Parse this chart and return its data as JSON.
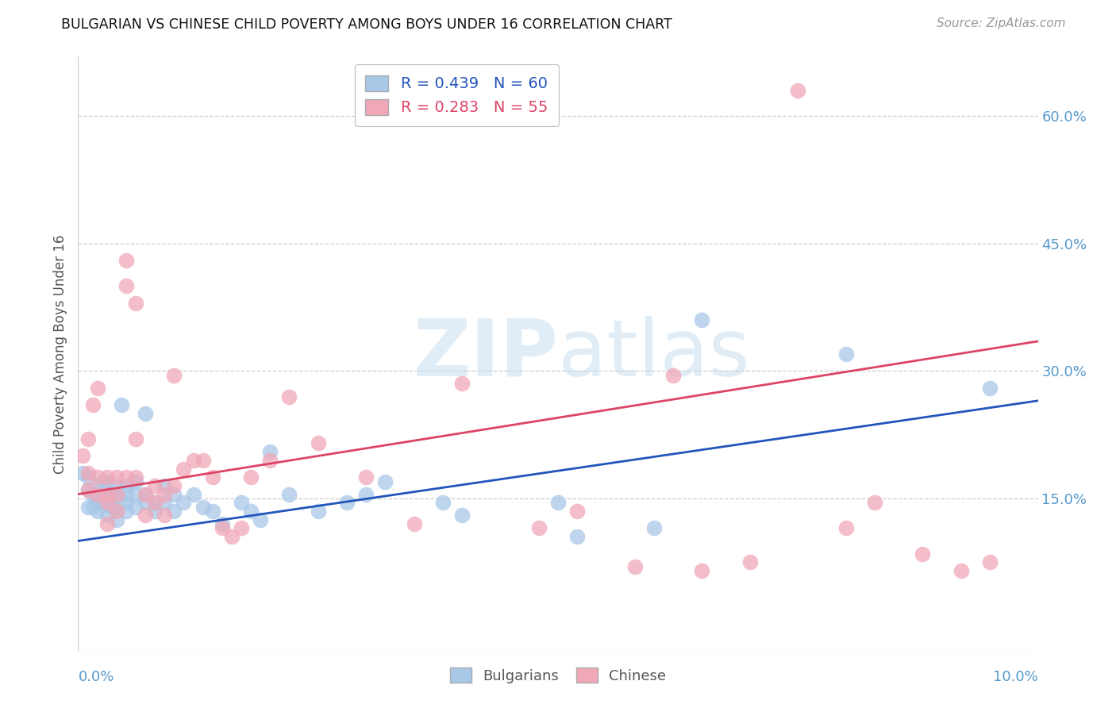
{
  "title": "BULGARIAN VS CHINESE CHILD POVERTY AMONG BOYS UNDER 16 CORRELATION CHART",
  "source": "Source: ZipAtlas.com",
  "ylabel": "Child Poverty Among Boys Under 16",
  "xlim": [
    0.0,
    0.1
  ],
  "ylim": [
    -0.03,
    0.67
  ],
  "bulgarian_R": 0.439,
  "bulgarian_N": 60,
  "chinese_R": 0.283,
  "chinese_N": 55,
  "bulgarian_color": "#a8c8e8",
  "chinese_color": "#f0a8b8",
  "bulgarian_line_color": "#2255bb",
  "chinese_line_color": "#dd4466",
  "watermark_color": "#c8dff0",
  "background_color": "#ffffff",
  "grid_color": "#cccccc",
  "tick_color": "#5599cc",
  "ytick_vals": [
    0.15,
    0.3,
    0.45,
    0.6
  ],
  "bulgarians_x": [
    0.0005,
    0.001,
    0.001,
    0.001,
    0.0015,
    0.0015,
    0.002,
    0.002,
    0.002,
    0.0025,
    0.0025,
    0.003,
    0.003,
    0.003,
    0.003,
    0.0035,
    0.0035,
    0.004,
    0.004,
    0.004,
    0.004,
    0.0045,
    0.005,
    0.005,
    0.005,
    0.005,
    0.006,
    0.006,
    0.006,
    0.007,
    0.007,
    0.007,
    0.008,
    0.008,
    0.009,
    0.009,
    0.01,
    0.01,
    0.011,
    0.012,
    0.013,
    0.014,
    0.015,
    0.017,
    0.018,
    0.019,
    0.02,
    0.022,
    0.025,
    0.028,
    0.03,
    0.032,
    0.038,
    0.04,
    0.05,
    0.052,
    0.06,
    0.065,
    0.08,
    0.095
  ],
  "bulgarians_y": [
    0.18,
    0.16,
    0.14,
    0.175,
    0.155,
    0.14,
    0.16,
    0.145,
    0.135,
    0.17,
    0.145,
    0.17,
    0.155,
    0.145,
    0.13,
    0.155,
    0.14,
    0.165,
    0.155,
    0.14,
    0.125,
    0.26,
    0.165,
    0.155,
    0.145,
    0.135,
    0.17,
    0.155,
    0.14,
    0.155,
    0.145,
    0.25,
    0.145,
    0.135,
    0.165,
    0.145,
    0.155,
    0.135,
    0.145,
    0.155,
    0.14,
    0.135,
    0.12,
    0.145,
    0.135,
    0.125,
    0.205,
    0.155,
    0.135,
    0.145,
    0.155,
    0.17,
    0.145,
    0.13,
    0.145,
    0.105,
    0.115,
    0.36,
    0.32,
    0.28
  ],
  "chinese_x": [
    0.0005,
    0.001,
    0.001,
    0.001,
    0.0015,
    0.002,
    0.002,
    0.002,
    0.003,
    0.003,
    0.003,
    0.003,
    0.004,
    0.004,
    0.004,
    0.005,
    0.005,
    0.005,
    0.006,
    0.006,
    0.006,
    0.007,
    0.007,
    0.008,
    0.008,
    0.009,
    0.009,
    0.01,
    0.01,
    0.011,
    0.012,
    0.013,
    0.014,
    0.015,
    0.016,
    0.017,
    0.018,
    0.02,
    0.022,
    0.025,
    0.03,
    0.035,
    0.04,
    0.048,
    0.052,
    0.058,
    0.062,
    0.065,
    0.07,
    0.075,
    0.08,
    0.083,
    0.088,
    0.092,
    0.095
  ],
  "chinese_y": [
    0.2,
    0.22,
    0.18,
    0.16,
    0.26,
    0.175,
    0.155,
    0.28,
    0.175,
    0.155,
    0.145,
    0.12,
    0.175,
    0.155,
    0.135,
    0.4,
    0.43,
    0.175,
    0.38,
    0.22,
    0.175,
    0.155,
    0.13,
    0.165,
    0.145,
    0.155,
    0.13,
    0.165,
    0.295,
    0.185,
    0.195,
    0.195,
    0.175,
    0.115,
    0.105,
    0.115,
    0.175,
    0.195,
    0.27,
    0.215,
    0.175,
    0.12,
    0.285,
    0.115,
    0.135,
    0.07,
    0.295,
    0.065,
    0.075,
    0.63,
    0.115,
    0.145,
    0.085,
    0.065,
    0.075
  ],
  "bline_x0": 0.0,
  "bline_x1": 0.1,
  "bline_y0": 0.1,
  "bline_y1": 0.265,
  "cline_x0": 0.0,
  "cline_x1": 0.1,
  "cline_y0": 0.155,
  "cline_y1": 0.335
}
